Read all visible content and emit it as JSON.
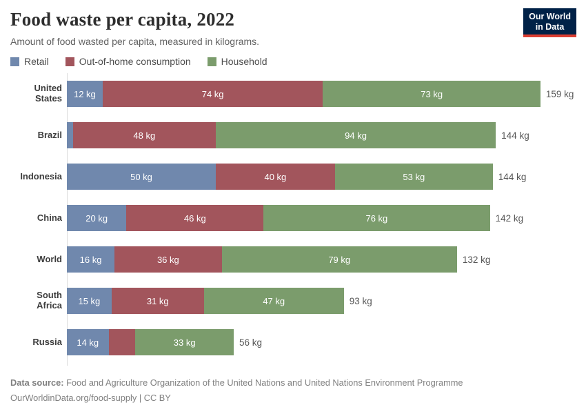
{
  "header": {
    "title": "Food waste per capita, 2022",
    "subtitle": "Amount of food wasted per capita, measured in kilograms.",
    "logo": {
      "line1": "Our World",
      "line2": "in Data",
      "bg_color": "#002147",
      "accent_color": "#dc3e32"
    }
  },
  "legend": {
    "items": [
      {
        "label": "Retail",
        "color": "#7088ad"
      },
      {
        "label": "Out-of-home consumption",
        "color": "#a2555c"
      },
      {
        "label": "Household",
        "color": "#7b9c6c"
      }
    ]
  },
  "chart_data": {
    "type": "bar",
    "orientation": "horizontal",
    "stacked": true,
    "unit": "kg",
    "xlim": [
      0,
      159
    ],
    "grid": false,
    "legend_position": "top",
    "categories": [
      "United States",
      "Brazil",
      "Indonesia",
      "China",
      "World",
      "South Africa",
      "Russia"
    ],
    "series": [
      {
        "name": "Retail",
        "color": "#7088ad",
        "values": [
          12,
          2,
          50,
          20,
          16,
          15,
          14
        ],
        "labels": [
          "12 kg",
          "",
          "50 kg",
          "20 kg",
          "16 kg",
          "15 kg",
          "14 kg"
        ]
      },
      {
        "name": "Out-of-home consumption",
        "color": "#a2555c",
        "values": [
          74,
          48,
          40,
          46,
          36,
          31,
          9
        ],
        "labels": [
          "74 kg",
          "48 kg",
          "40 kg",
          "46 kg",
          "36 kg",
          "31 kg",
          ""
        ]
      },
      {
        "name": "Household",
        "color": "#7b9c6c",
        "values": [
          73,
          94,
          53,
          76,
          79,
          47,
          33
        ],
        "labels": [
          "73 kg",
          "94 kg",
          "53 kg",
          "76 kg",
          "79 kg",
          "47 kg",
          "33 kg"
        ]
      }
    ],
    "totals": [
      "159 kg",
      "144 kg",
      "144 kg",
      "142 kg",
      "132 kg",
      "93 kg",
      "56 kg"
    ]
  },
  "footer": {
    "source_label": "Data source:",
    "source_text": "Food and Agriculture Organization of the United Nations and United Nations Environment Programme",
    "attribution": "OurWorldinData.org/food-supply | CC BY"
  }
}
